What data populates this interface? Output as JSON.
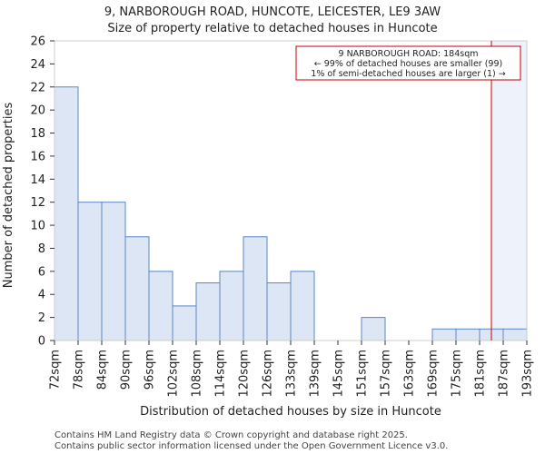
{
  "chart_data": {
    "type": "bar",
    "title": "9, NARBOROUGH ROAD, HUNCOTE, LEICESTER, LE9 3AW",
    "subtitle": "Size of property relative to detached houses in Huncote",
    "xlabel": "Distribution of detached houses by size in Huncote",
    "ylabel": "Number of detached properties",
    "bin_edges": [
      "72sqm",
      "78sqm",
      "84sqm",
      "90sqm",
      "96sqm",
      "102sqm",
      "108sqm",
      "114sqm",
      "120sqm",
      "126sqm",
      "133sqm",
      "139sqm",
      "145sqm",
      "151sqm",
      "157sqm",
      "163sqm",
      "169sqm",
      "175sqm",
      "181sqm",
      "187sqm",
      "193sqm"
    ],
    "values": [
      22,
      12,
      12,
      9,
      6,
      3,
      5,
      6,
      9,
      5,
      6,
      0,
      0,
      2,
      0,
      0,
      1,
      1,
      1,
      1
    ],
    "ylim": [
      0,
      26
    ],
    "yticks": [
      0,
      2,
      4,
      6,
      8,
      10,
      12,
      14,
      16,
      18,
      20,
      22,
      24,
      26
    ],
    "grid": false,
    "bar_color": "#dce6f4",
    "bar_edge_color": "#5b87c5",
    "marker": {
      "value_sqm": 184,
      "color": "#c00000",
      "annotation": [
        "9 NARBOROUGH ROAD: 184sqm",
        "← 99% of detached houses are smaller (99)",
        "1% of semi-detached houses are larger (1) →"
      ]
    }
  },
  "footer": {
    "line1": "Contains HM Land Registry data © Crown copyright and database right 2025.",
    "line2": "Contains public sector information licensed under the Open Government Licence v3.0."
  }
}
